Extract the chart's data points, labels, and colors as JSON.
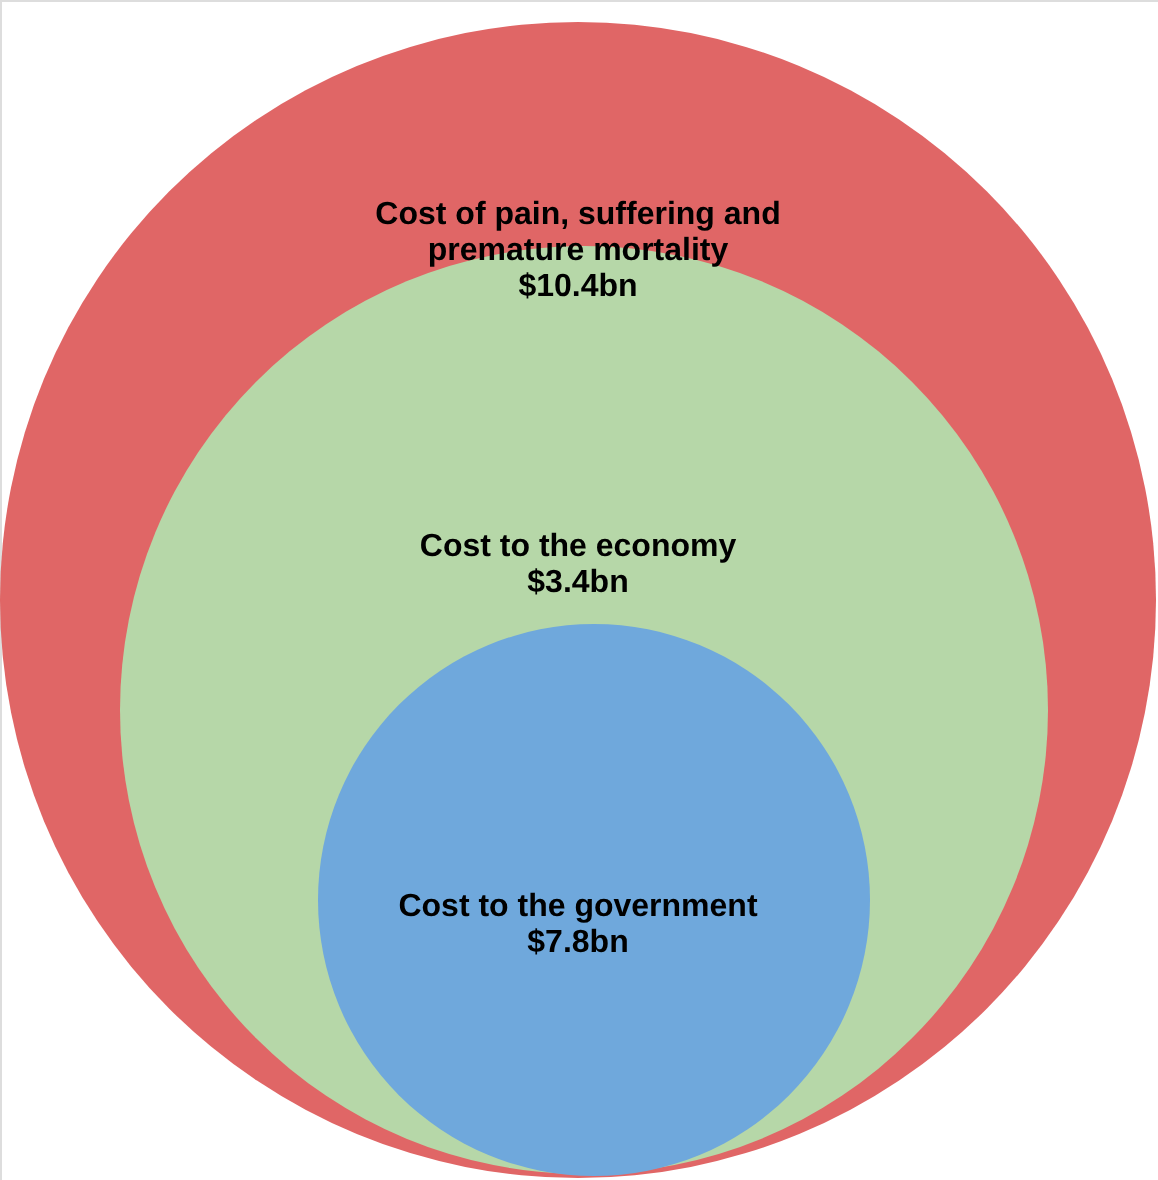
{
  "chart_data": {
    "type": "other",
    "categories": [
      "Cost of pain, suffering and premature mortality",
      "Cost to the economy",
      "Cost to the government"
    ],
    "values": [
      10.4,
      3.4,
      7.8
    ],
    "value_labels": [
      "$10.4bn",
      "$3.4bn",
      "$7.8bn"
    ],
    "colors": [
      "#e06666",
      "#b6d7a8",
      "#6fa8dc"
    ]
  }
}
